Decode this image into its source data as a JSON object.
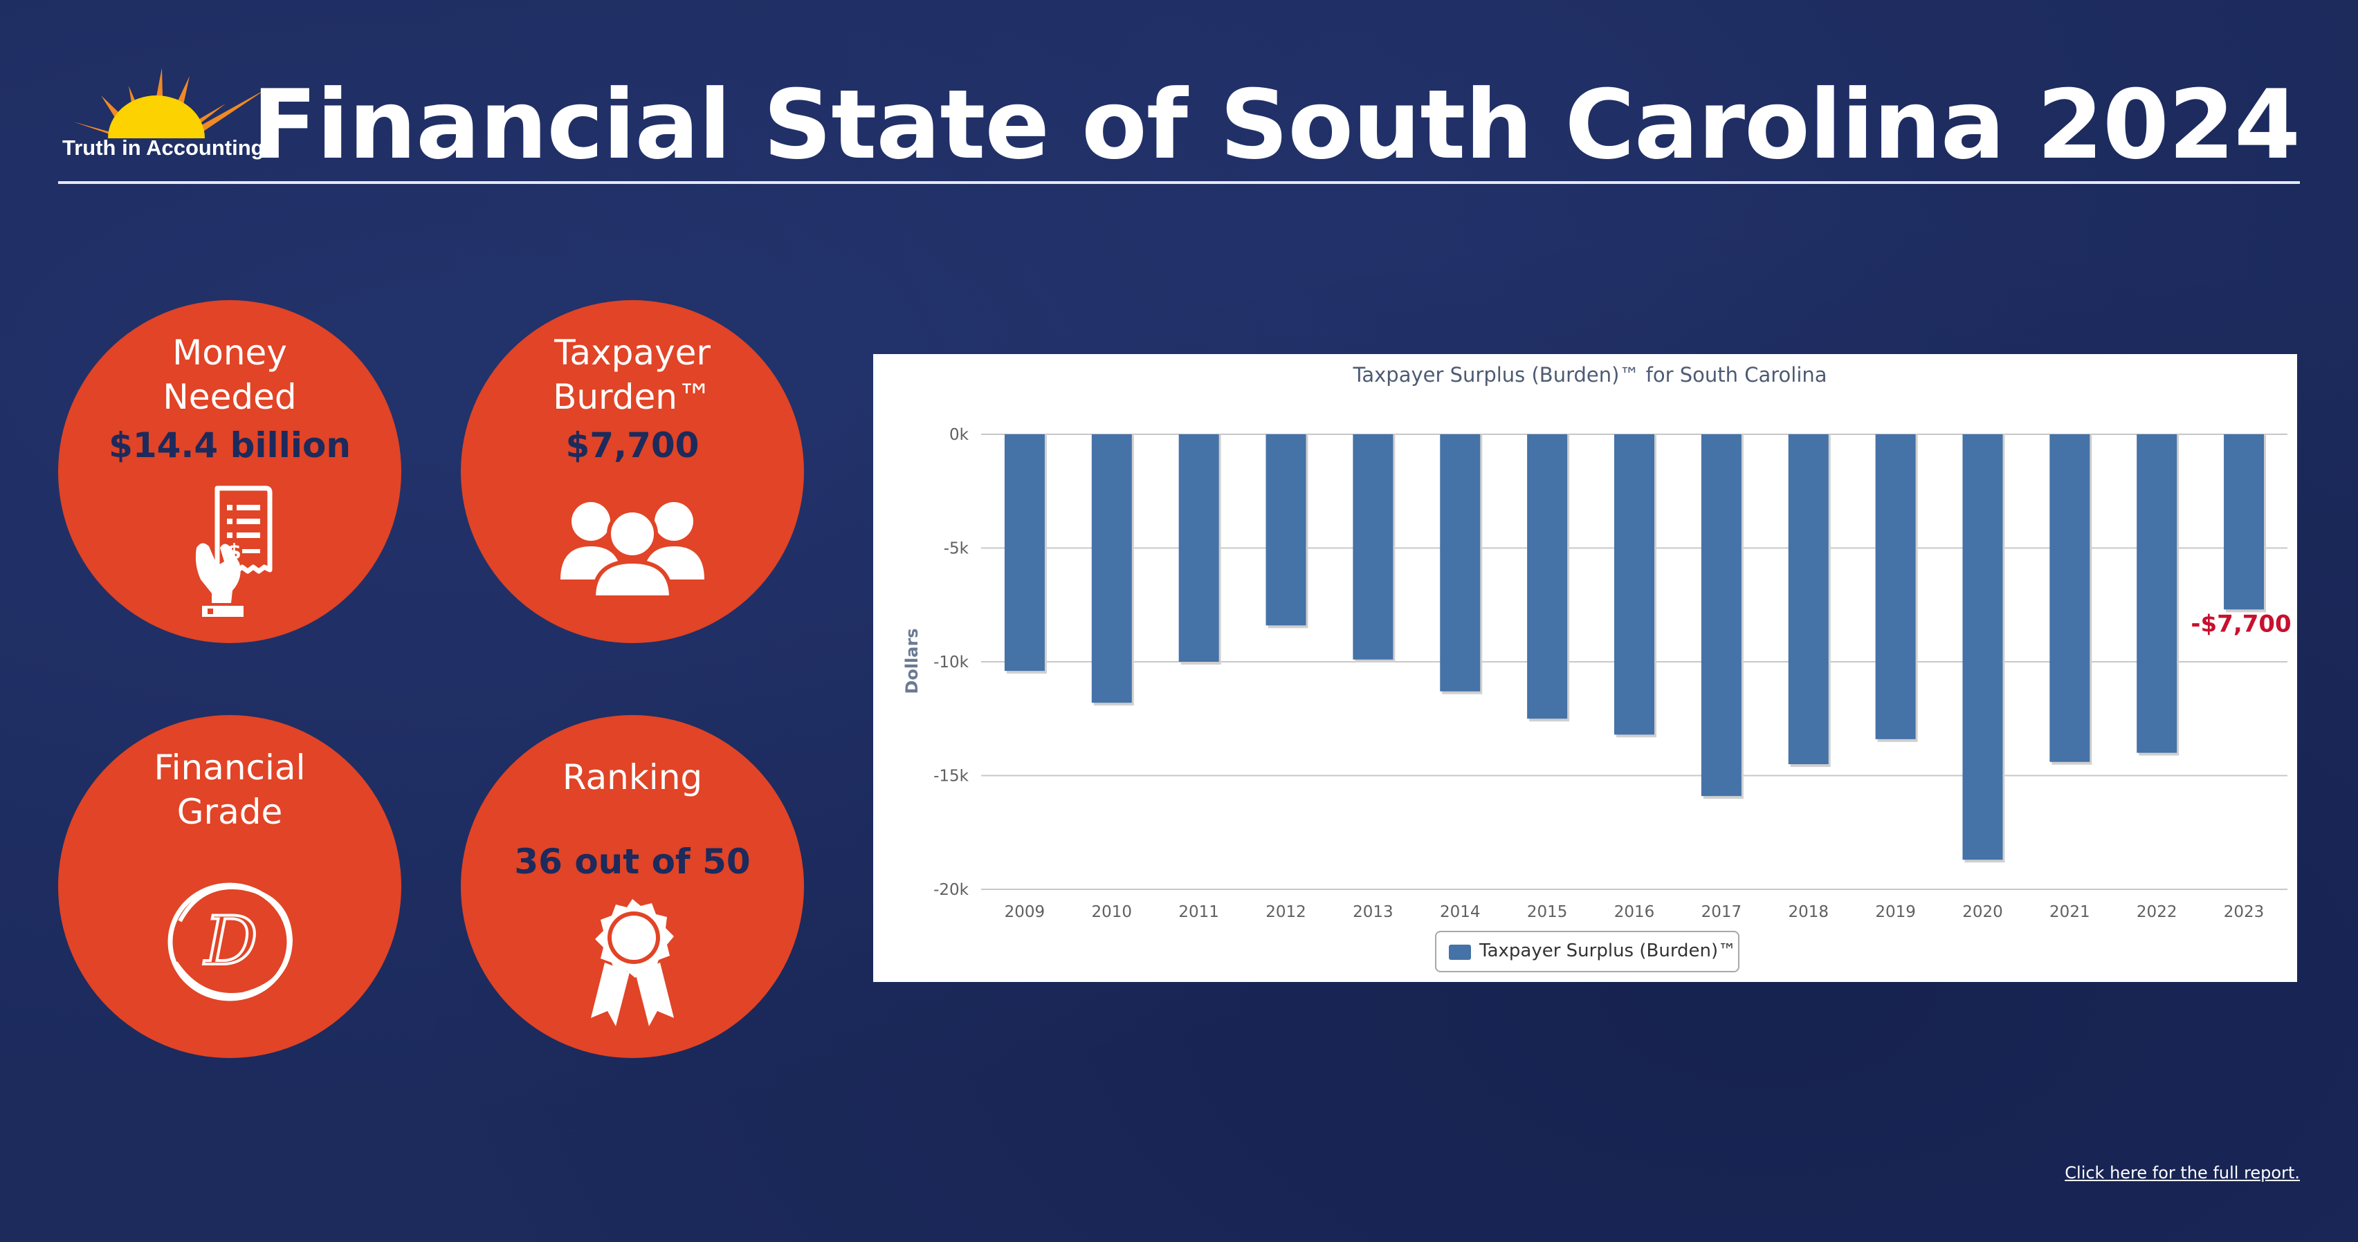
{
  "logo": {
    "text": "Truth in Accounting"
  },
  "header": {
    "title": "Financial State of South Carolina 2024"
  },
  "cards": {
    "money_needed": {
      "label_line1": "Money",
      "label_line2": "Needed",
      "value": "$14.4 billion",
      "icon": "receipt-hand-icon"
    },
    "taxpayer_burden": {
      "label_line1": "Taxpayer",
      "label_line2": "Burden™",
      "value": "$7,700",
      "icon": "people-group-icon"
    },
    "financial_grade": {
      "label_line1": "Financial",
      "label_line2": "Grade",
      "value": "D",
      "icon": "circled-grade-icon"
    },
    "ranking": {
      "label": "Ranking",
      "value": "36 out of 50",
      "icon": "award-ribbon-icon"
    }
  },
  "chart_data": {
    "type": "bar",
    "title": "Taxpayer Surplus (Burden)™ for South Carolina",
    "ylabel": "Dollars",
    "xlabel": "",
    "ylim": [
      -20000,
      0
    ],
    "yticks": [
      0,
      -5000,
      -10000,
      -15000,
      -20000
    ],
    "ytick_labels": [
      "0k",
      "-5k",
      "-10k",
      "-15k",
      "-20k"
    ],
    "categories": [
      "2009",
      "2010",
      "2011",
      "2012",
      "2013",
      "2014",
      "2015",
      "2016",
      "2017",
      "2018",
      "2019",
      "2020",
      "2021",
      "2022",
      "2023"
    ],
    "series": [
      {
        "name": "Taxpayer Surplus (Burden)™",
        "values": [
          -10400,
          -11800,
          -10000,
          -8400,
          -9900,
          -11300,
          -12500,
          -13200,
          -15900,
          -14500,
          -13400,
          -18700,
          -14400,
          -14000,
          -7700
        ]
      }
    ],
    "annotation": {
      "category": "2023",
      "text": "-$7,700",
      "color": "#c8102e"
    },
    "grid": true,
    "legend": "bottom-center",
    "bar_color": "#4572a7"
  },
  "footer": {
    "link_text": "Click here for the full report."
  },
  "colors": {
    "background": "#1c2a5c",
    "accent": "#e14426",
    "navy": "#1c2a5c"
  }
}
